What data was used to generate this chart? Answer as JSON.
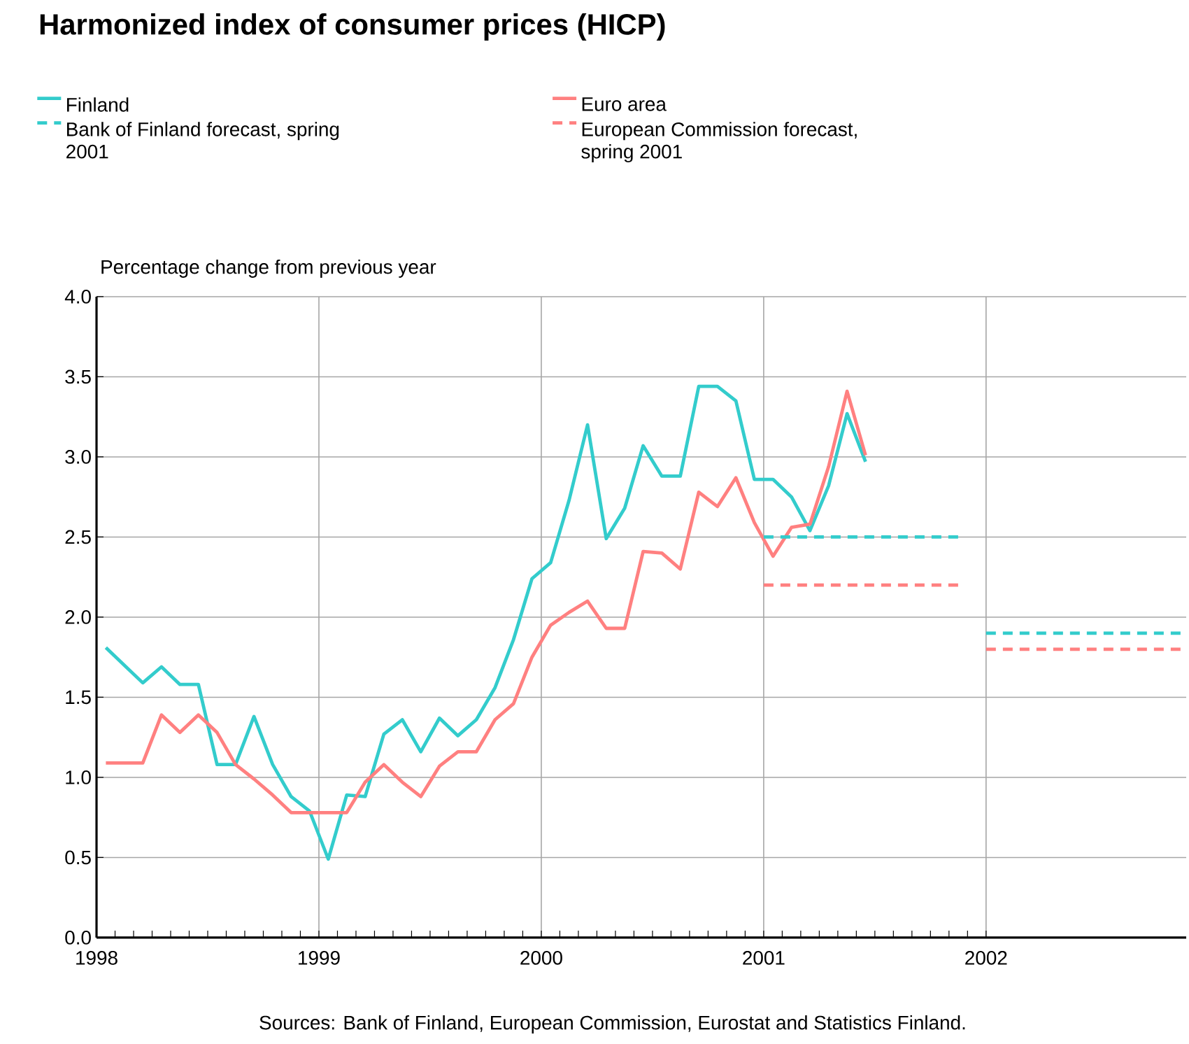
{
  "chart_data": {
    "type": "line",
    "title": "Harmonized index of consumer prices (HICP)",
    "ylabel": "Percentage change from previous year",
    "annotations": [
      "Sources: Bank of Finland, European Commission, Eurostat and Statistics Finland."
    ],
    "xlim": [
      1998,
      2002.9
    ],
    "xticks": [
      1998,
      1999,
      2000,
      2001,
      2002
    ],
    "ylim": [
      0,
      4
    ],
    "yticks": [
      {
        "value": 0,
        "label": "0.0"
      },
      {
        "value": 0.5,
        "label": "0.5"
      },
      {
        "value": 1,
        "label": "1.0"
      },
      {
        "value": 1.5,
        "label": "1.5"
      },
      {
        "value": 2,
        "label": "2.0"
      },
      {
        "value": 2.5,
        "label": "2.5"
      },
      {
        "value": 3,
        "label": "3.0"
      },
      {
        "value": 3.5,
        "label": "3.5"
      },
      {
        "value": 4,
        "label": "4.0"
      }
    ],
    "grid": true,
    "legend": "top",
    "marker": "none",
    "series": [
      {
        "name": "Finland",
        "color": "#33cccc",
        "line_style": "solid",
        "x": [
          1998.042,
          1998.125,
          1998.208,
          1998.292,
          1998.375,
          1998.458,
          1998.542,
          1998.625,
          1998.708,
          1998.792,
          1998.875,
          1998.958,
          1999.042,
          1999.125,
          1999.208,
          1999.292,
          1999.375,
          1999.458,
          1999.542,
          1999.625,
          1999.708,
          1999.792,
          1999.875,
          1999.958,
          2000.042,
          2000.125,
          2000.208,
          2000.292,
          2000.375,
          2000.458,
          2000.542,
          2000.625,
          2000.708,
          2000.792,
          2000.875,
          2000.958,
          2001.042,
          2001.125,
          2001.208,
          2001.292,
          2001.375,
          2001.458
        ],
        "values": [
          1.81,
          1.7,
          1.59,
          1.69,
          1.58,
          1.58,
          1.08,
          1.08,
          1.38,
          1.08,
          0.88,
          0.79,
          0.49,
          0.89,
          0.88,
          1.27,
          1.36,
          1.16,
          1.37,
          1.26,
          1.36,
          1.56,
          1.86,
          2.24,
          2.34,
          2.73,
          3.2,
          2.49,
          2.68,
          3.07,
          2.88,
          2.88,
          3.44,
          3.44,
          3.35,
          2.86,
          2.86,
          2.75,
          2.54,
          2.82,
          3.27,
          2.97
        ]
      },
      {
        "name": "Euro area",
        "color": "#ff8080",
        "line_style": "solid",
        "x": [
          1998.042,
          1998.125,
          1998.208,
          1998.292,
          1998.375,
          1998.458,
          1998.542,
          1998.625,
          1998.708,
          1998.792,
          1998.875,
          1998.958,
          1999.042,
          1999.125,
          1999.208,
          1999.292,
          1999.375,
          1999.458,
          1999.542,
          1999.625,
          1999.708,
          1999.792,
          1999.875,
          1999.958,
          2000.042,
          2000.125,
          2000.208,
          2000.292,
          2000.375,
          2000.458,
          2000.542,
          2000.625,
          2000.708,
          2000.792,
          2000.875,
          2000.958,
          2001.042,
          2001.125,
          2001.208,
          2001.292,
          2001.375,
          2001.458
        ],
        "values": [
          1.09,
          1.09,
          1.09,
          1.39,
          1.28,
          1.39,
          1.28,
          1.08,
          0.99,
          0.89,
          0.78,
          0.78,
          0.78,
          0.78,
          0.97,
          1.08,
          0.97,
          0.88,
          1.07,
          1.16,
          1.16,
          1.36,
          1.46,
          1.75,
          1.95,
          2.03,
          2.1,
          1.93,
          1.93,
          2.41,
          2.4,
          2.3,
          2.78,
          2.69,
          2.87,
          2.59,
          2.38,
          2.56,
          2.58,
          2.94,
          3.41,
          3.01
        ]
      },
      {
        "name": "Bank of Finland forecast, spring 2001",
        "color": "#33cccc",
        "line_style": "dashed",
        "x": [
          2001.0,
          2001.9,
          null,
          2002.0,
          2002.9
        ],
        "values": [
          2.5,
          2.5,
          null,
          1.9,
          1.9
        ]
      },
      {
        "name": "European Commission forecast, spring 2001",
        "color": "#ff8080",
        "line_style": "dashed",
        "x": [
          2001.0,
          2001.9,
          null,
          2002.0,
          2002.9
        ],
        "values": [
          2.2,
          2.2,
          null,
          1.8,
          1.8
        ]
      }
    ]
  }
}
